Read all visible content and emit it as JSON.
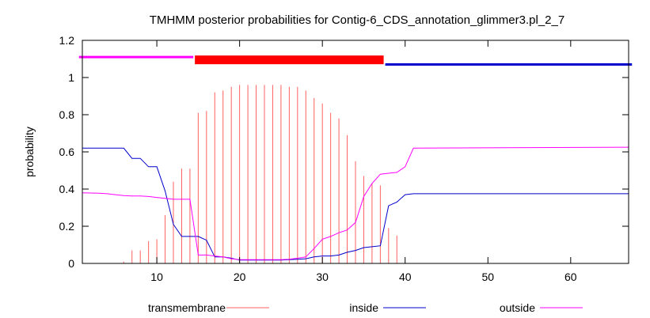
{
  "chart_data": {
    "type": "line",
    "title": "TMHMM posterior probabilities for Contig-6_CDS_annotation_glimmer3.pl_2_7",
    "xlabel": "",
    "ylabel": "probability",
    "xlim": [
      1,
      67
    ],
    "ylim": [
      0,
      1.2
    ],
    "xticks": [
      10,
      20,
      30,
      40,
      50,
      60
    ],
    "yticks": [
      0,
      0.2,
      0.4,
      0.6,
      0.8,
      1,
      1.2
    ],
    "ytick_labels": [
      "0",
      "0.2",
      "0.4",
      "0.6",
      "0.8",
      "1",
      "1.2"
    ],
    "grid": false,
    "legend_position": "bottom",
    "topology": [
      {
        "name": "outside",
        "start": 1,
        "end": 14,
        "color": "#ff00ff"
      },
      {
        "name": "transmembrane",
        "start": 15,
        "end": 37,
        "color": "#ff0000"
      },
      {
        "name": "inside",
        "start": 38,
        "end": 67,
        "color": "#0000cc"
      }
    ],
    "series": [
      {
        "name": "transmembrane",
        "style": "impulses",
        "color": "#ff6060",
        "x": [
          1,
          2,
          3,
          4,
          5,
          6,
          7,
          8,
          9,
          10,
          11,
          12,
          13,
          14,
          15,
          16,
          17,
          18,
          19,
          20,
          21,
          22,
          23,
          24,
          25,
          26,
          27,
          28,
          29,
          30,
          31,
          32,
          33,
          34,
          35,
          36,
          37,
          38,
          39,
          40
        ],
        "values": [
          0,
          0,
          0,
          0,
          0.002,
          0.01,
          0.07,
          0.07,
          0.12,
          0.13,
          0.26,
          0.44,
          0.51,
          0.51,
          0.81,
          0.82,
          0.92,
          0.93,
          0.95,
          0.96,
          0.96,
          0.96,
          0.96,
          0.96,
          0.96,
          0.95,
          0.95,
          0.93,
          0.89,
          0.86,
          0.81,
          0.78,
          0.69,
          0.55,
          0.47,
          0.43,
          0.42,
          0.19,
          0.15,
          0
        ]
      },
      {
        "name": "inside",
        "style": "line",
        "color": "#0000cc",
        "x": [
          1,
          5,
          6,
          7,
          8,
          9,
          10,
          11,
          12,
          13,
          14,
          15,
          16,
          17,
          18,
          19,
          20,
          25,
          26,
          27,
          28,
          29,
          30,
          31,
          32,
          33,
          34,
          35,
          36,
          37,
          38,
          39,
          40,
          41,
          67
        ],
        "values": [
          0.62,
          0.62,
          0.62,
          0.565,
          0.565,
          0.52,
          0.52,
          0.39,
          0.21,
          0.145,
          0.145,
          0.145,
          0.125,
          0.035,
          0.035,
          0.028,
          0.018,
          0.018,
          0.02,
          0.022,
          0.025,
          0.035,
          0.04,
          0.04,
          0.045,
          0.06,
          0.07,
          0.085,
          0.09,
          0.095,
          0.31,
          0.33,
          0.37,
          0.375,
          0.375
        ]
      },
      {
        "name": "outside",
        "style": "line",
        "color": "#ff00ff",
        "x": [
          1,
          3,
          4,
          5,
          6,
          7,
          8,
          9,
          10,
          11,
          12,
          13,
          14,
          15,
          16,
          17,
          18,
          19,
          20,
          25,
          26,
          27,
          28,
          29,
          30,
          31,
          32,
          33,
          34,
          35,
          36,
          37,
          38,
          39,
          40,
          41,
          67
        ],
        "values": [
          0.38,
          0.378,
          0.375,
          0.37,
          0.365,
          0.363,
          0.363,
          0.36,
          0.355,
          0.35,
          0.345,
          0.345,
          0.345,
          0.045,
          0.045,
          0.04,
          0.035,
          0.025,
          0.02,
          0.02,
          0.022,
          0.028,
          0.035,
          0.08,
          0.13,
          0.145,
          0.165,
          0.18,
          0.22,
          0.36,
          0.43,
          0.48,
          0.485,
          0.49,
          0.52,
          0.62,
          0.625
        ]
      }
    ]
  }
}
